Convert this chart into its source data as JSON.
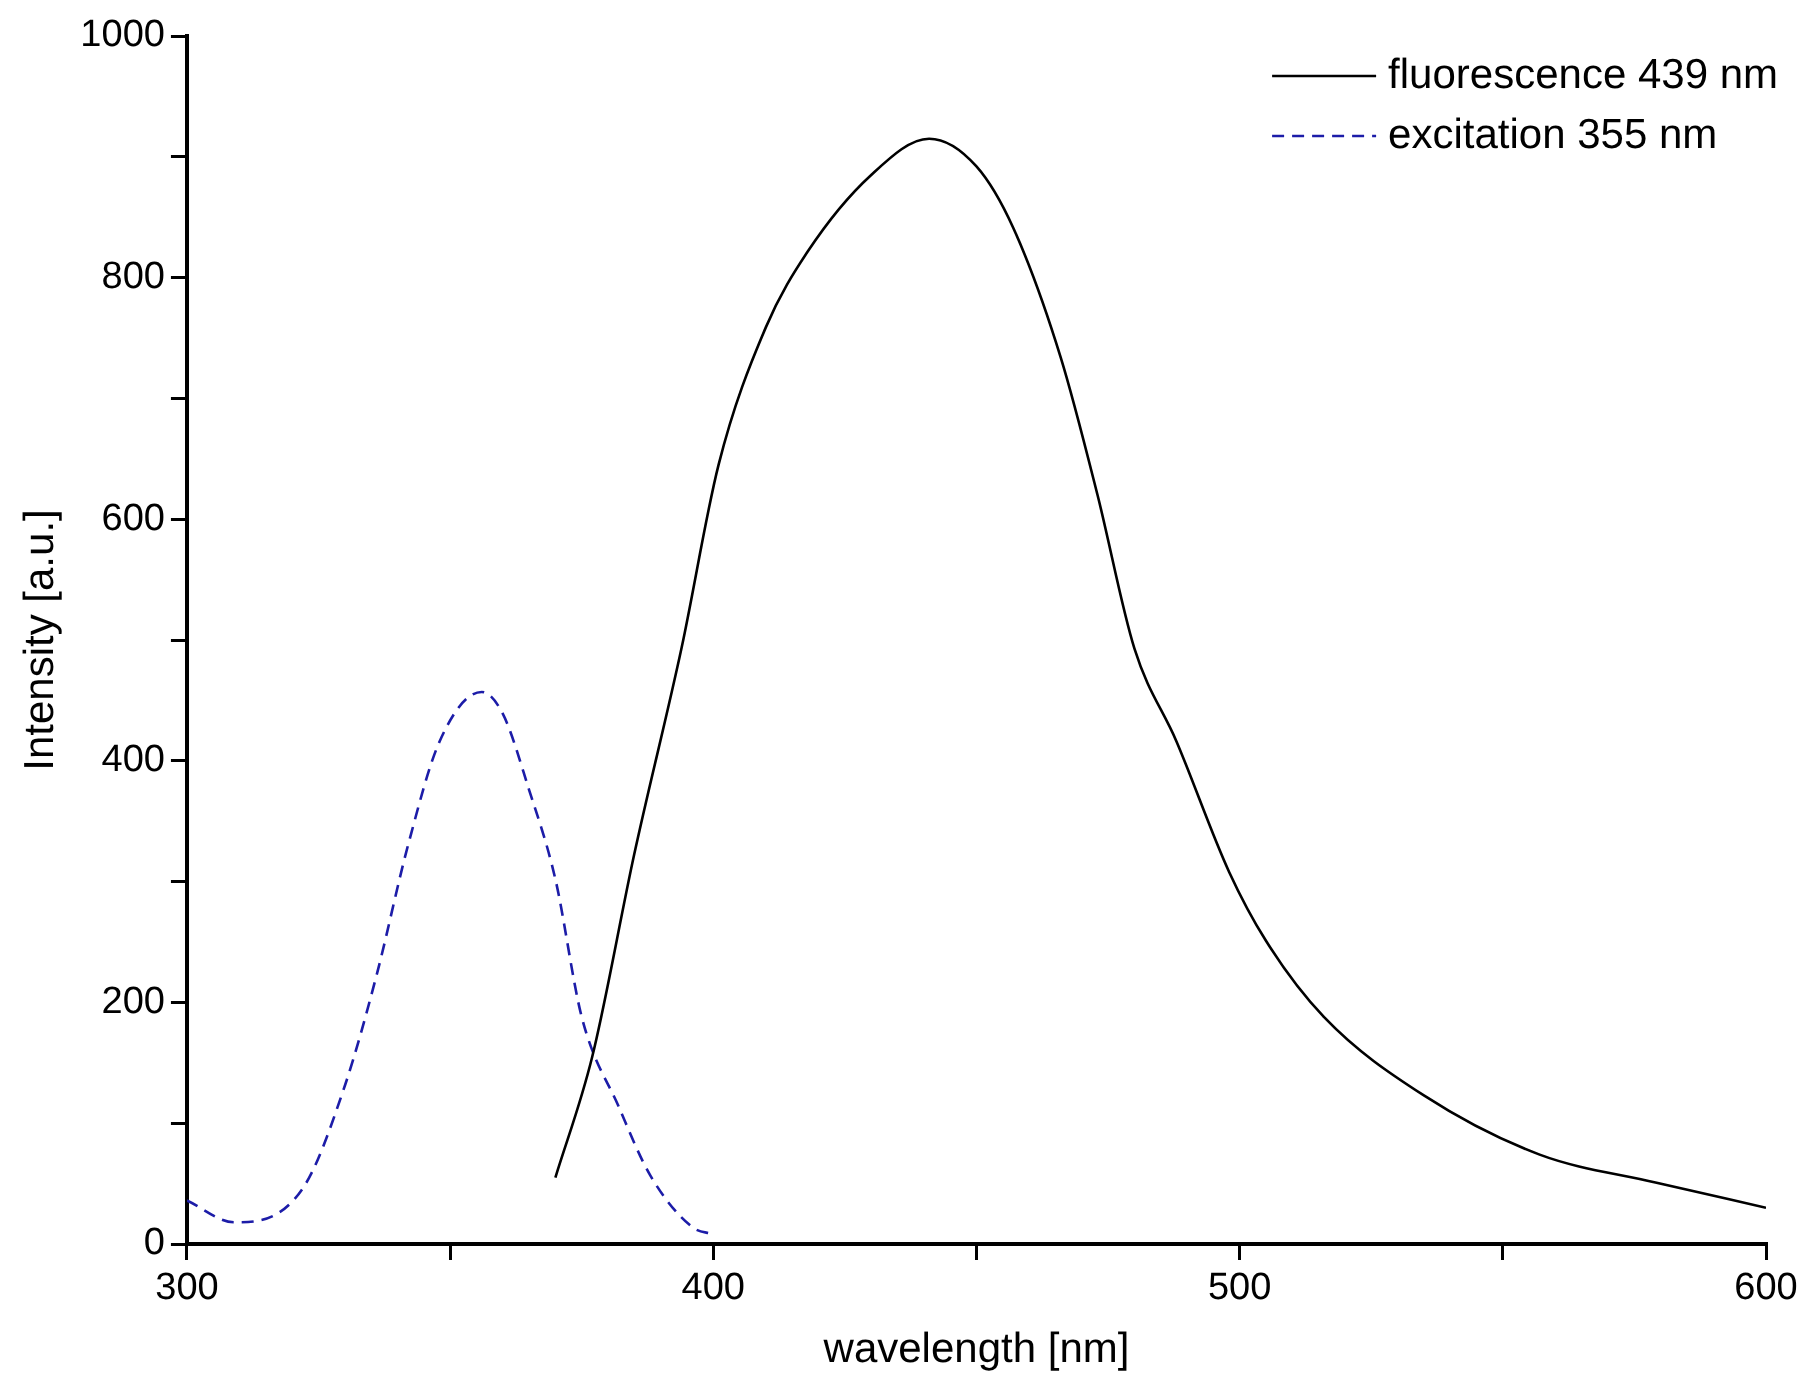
{
  "chart_data": {
    "type": "line",
    "xlabel": "wavelength [nm]",
    "ylabel": "Intensity [a.u.]",
    "xlim": [
      300,
      600
    ],
    "xticks": [
      300,
      {
        "value": 350,
        "label": null
      },
      400,
      {
        "value": 450,
        "label": null
      },
      500,
      {
        "value": 550,
        "label": null
      },
      600
    ],
    "ylim": [
      0,
      1000
    ],
    "yticks": [
      0,
      {
        "value": 100,
        "label": null
      },
      200,
      {
        "value": 300,
        "label": null
      },
      400,
      {
        "value": 500,
        "label": null
      },
      600,
      {
        "value": 700,
        "label": null
      },
      800,
      {
        "value": 900,
        "label": null
      },
      1000
    ],
    "grid": false,
    "legend": "top right",
    "marker": "none",
    "series": [
      {
        "name": "fluorescence 439 nm",
        "color": "#000000",
        "line_style": "solid",
        "x": [
          370,
          377,
          385,
          394,
          401,
          410,
          418,
          430,
          441,
          450,
          457,
          466,
          473,
          480,
          488,
          498,
          505,
          516,
          535,
          557,
          579,
          600
        ],
        "values": [
          55,
          155,
          323,
          494,
          645,
          759,
          822,
          885,
          915,
          892,
          841,
          734,
          620,
          493,
          416,
          308,
          251,
          188,
          123,
          74,
          51,
          30
        ]
      },
      {
        "name": "excitation 355 nm",
        "color": "#1c1ca8",
        "line_style": "dashed",
        "x": [
          300,
          309,
          322,
          330,
          336,
          342,
          348,
          356,
          360,
          365,
          370,
          375,
          382,
          388,
          396,
          400
        ],
        "values": [
          36,
          18,
          46,
          131,
          222,
          330,
          416,
          457,
          439,
          376,
          302,
          188,
          114,
          57,
          14,
          8
        ]
      }
    ]
  }
}
